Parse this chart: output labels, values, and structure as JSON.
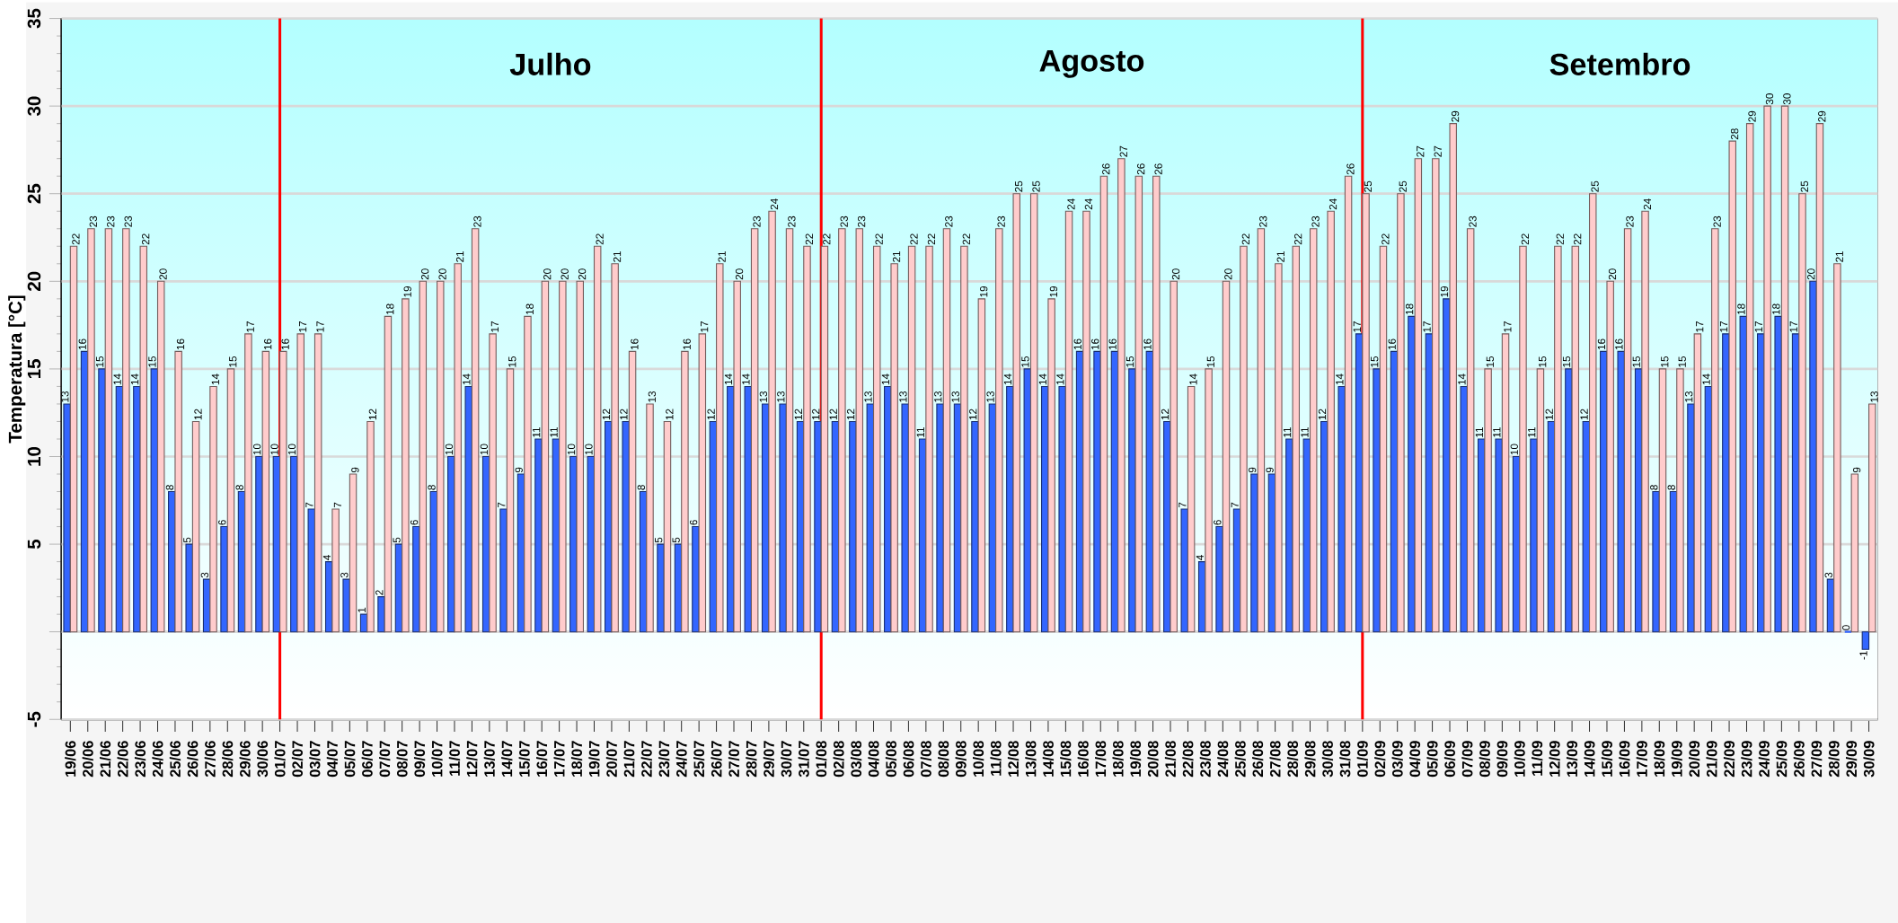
{
  "chart_data": {
    "type": "bar",
    "ylabel": "Temperatura [°C]",
    "categories": [
      "19/06",
      "20/06",
      "21/06",
      "22/06",
      "23/06",
      "24/06",
      "25/06",
      "26/06",
      "27/06",
      "28/06",
      "29/06",
      "30/06",
      "01/07",
      "02/07",
      "03/07",
      "04/07",
      "05/07",
      "06/07",
      "07/07",
      "08/07",
      "09/07",
      "10/07",
      "11/07",
      "12/07",
      "13/07",
      "14/07",
      "15/07",
      "16/07",
      "17/07",
      "18/07",
      "19/07",
      "20/07",
      "21/07",
      "22/07",
      "23/07",
      "24/07",
      "25/07",
      "26/07",
      "27/07",
      "28/07",
      "29/07",
      "30/07",
      "31/07",
      "01/08",
      "02/08",
      "03/08",
      "04/08",
      "05/08",
      "06/08",
      "07/08",
      "08/08",
      "09/08",
      "10/08",
      "11/08",
      "12/08",
      "13/08",
      "14/08",
      "15/08",
      "16/08",
      "17/08",
      "18/08",
      "19/08",
      "20/08",
      "21/08",
      "22/08",
      "23/08",
      "24/08",
      "25/08",
      "26/08",
      "27/08",
      "28/08",
      "29/08",
      "30/08",
      "31/08",
      "01/09",
      "02/09",
      "03/09",
      "04/09",
      "05/09",
      "06/09",
      "07/09",
      "08/09",
      "09/09",
      "10/09",
      "11/09",
      "12/09",
      "13/09",
      "14/09",
      "15/09",
      "16/09",
      "17/09",
      "18/09",
      "19/09",
      "20/09",
      "21/09",
      "22/09",
      "23/09",
      "24/09",
      "25/09",
      "26/09",
      "27/09",
      "28/09",
      "29/09",
      "30/09"
    ],
    "series": [
      {
        "color": "#3366ff",
        "values": [
          13,
          16,
          15,
          14,
          14,
          15,
          8,
          5,
          3,
          6,
          8,
          10,
          10,
          10,
          7,
          4,
          3,
          1,
          2,
          5,
          6,
          8,
          10,
          14,
          10,
          7,
          9,
          11,
          11,
          10,
          10,
          12,
          12,
          8,
          5,
          5,
          6,
          12,
          14,
          14,
          13,
          13,
          12,
          12,
          12,
          12,
          13,
          14,
          13,
          11,
          13,
          13,
          12,
          13,
          14,
          15,
          14,
          14,
          16,
          16,
          16,
          15,
          16,
          12,
          7,
          4,
          6,
          7,
          9,
          9,
          11,
          11,
          12,
          14,
          17,
          15,
          16,
          18,
          17,
          19,
          14,
          11,
          11,
          10,
          11,
          12,
          15,
          12,
          16,
          16,
          15,
          8,
          8,
          13,
          14,
          17,
          18,
          17,
          18,
          17,
          20,
          3,
          0,
          -1
        ]
      },
      {
        "color": "#ffcccc",
        "values": [
          22,
          23,
          23,
          23,
          22,
          20,
          16,
          12,
          14,
          15,
          17,
          16,
          16,
          17,
          17,
          7,
          9,
          12,
          18,
          19,
          20,
          20,
          21,
          23,
          17,
          15,
          18,
          20,
          20,
          20,
          22,
          21,
          16,
          13,
          12,
          16,
          17,
          21,
          20,
          23,
          24,
          23,
          22,
          22,
          23,
          23,
          22,
          21,
          22,
          22,
          23,
          22,
          19,
          23,
          25,
          25,
          19,
          24,
          24,
          26,
          27,
          26,
          26,
          20,
          14,
          15,
          20,
          22,
          23,
          21,
          22,
          23,
          24,
          26,
          25,
          22,
          25,
          27,
          27,
          29,
          23,
          15,
          17,
          22,
          15,
          22,
          22,
          25,
          20,
          23,
          24,
          15,
          15,
          17,
          23,
          28,
          29,
          30,
          30,
          25,
          29,
          21,
          9,
          13
        ]
      }
    ],
    "ylim": [
      -5,
      35
    ],
    "yticks": [
      -5,
      {
        "value": 0,
        "label": null
      },
      5,
      10,
      15,
      20,
      25,
      30,
      35
    ],
    "grid": "y",
    "data_labels": true,
    "ref_lines": [
      {
        "axis": "x",
        "value": "01/07",
        "color": "#ff0000"
      },
      {
        "axis": "x",
        "value": "01/08",
        "color": "#ff0000"
      },
      {
        "axis": "x",
        "value": "01/09",
        "color": "#ff0000"
      }
    ],
    "annotations": [
      "Julho",
      "Agosto",
      "Setembro"
    ]
  }
}
